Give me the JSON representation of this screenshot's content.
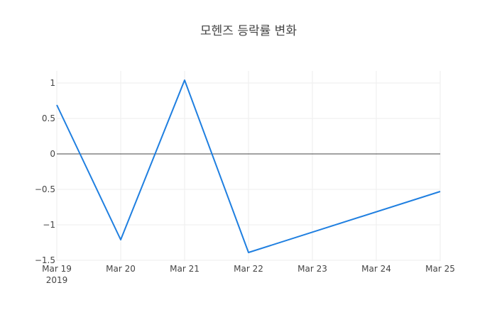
{
  "chart_data": {
    "type": "line",
    "title": "모헨즈 등락률 변화",
    "xlabel": "",
    "ylabel": "",
    "categories": [
      "Mar 19",
      "Mar 20",
      "Mar 21",
      "Mar 22",
      "Mar 23",
      "Mar 24",
      "Mar 25"
    ],
    "x_tick_labels": [
      "Mar 19",
      "Mar 20",
      "Mar 21",
      "Mar 22",
      "Mar 23",
      "Mar 24",
      "Mar 25"
    ],
    "x_tick_sublabel": "2019",
    "series": [
      {
        "name": "등락률",
        "color": "#1f7fe0",
        "points": [
          {
            "x": "2019-03-19",
            "y": 0.69
          },
          {
            "x": "2019-03-20",
            "y": -1.21
          },
          {
            "x": "2019-03-21",
            "y": 1.04
          },
          {
            "x": "2019-03-22",
            "y": -1.39
          },
          {
            "x": "2019-03-25",
            "y": -0.53
          }
        ]
      }
    ],
    "y_ticks": [
      1,
      0.5,
      0,
      -0.5,
      -1,
      -1.5
    ],
    "y_tick_labels": [
      "1",
      "0.5",
      "0",
      "−0.5",
      "−1",
      "−1.5"
    ],
    "ylim": [
      -1.5,
      1.15
    ],
    "xlim": [
      "2019-03-19",
      "2019-03-25"
    ],
    "grid": true,
    "zeroline": true,
    "legend": "none"
  }
}
